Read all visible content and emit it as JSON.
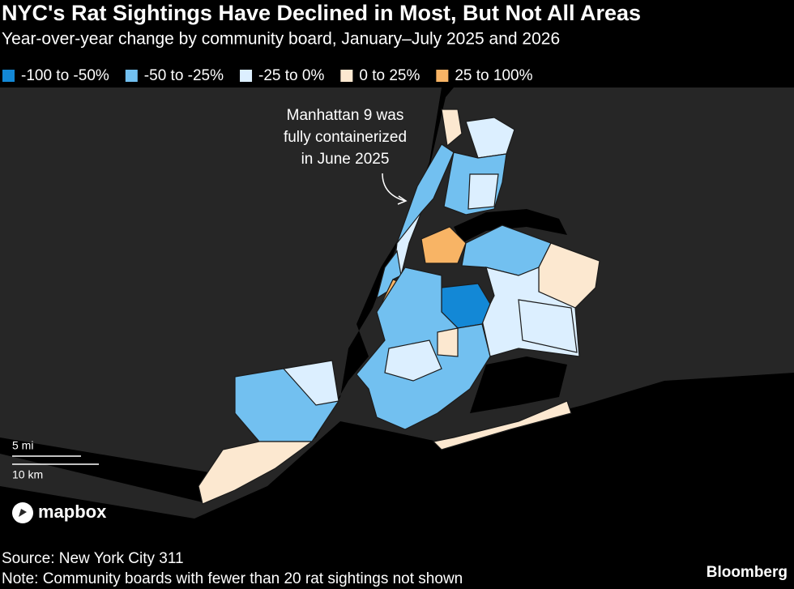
{
  "header": {
    "title": "NYC's Rat Sightings Have Declined in Most, But Not All Areas",
    "subtitle": "Year-over-year change by community board, January–July 2025 and 2026"
  },
  "legend": [
    {
      "label": "-100 to -50%",
      "color": "#1388d6"
    },
    {
      "label": "-50 to -25%",
      "color": "#72c0f0"
    },
    {
      "label": "-25 to 0%",
      "color": "#dcefff"
    },
    {
      "label": "0 to 25%",
      "color": "#fce8d0"
    },
    {
      "label": "25 to 100%",
      "color": "#f8b465"
    }
  ],
  "annotation": {
    "lines": [
      "Manhattan 9 was",
      "fully containerized",
      "in June 2025"
    ]
  },
  "scale": {
    "miles": "5 mi",
    "km": "10 km"
  },
  "attribution": "mapbox",
  "footer": {
    "source": "Source: New York City 311",
    "note": "Note: Community boards with fewer than 20 rat sightings not shown",
    "brand": "Bloomberg"
  }
}
